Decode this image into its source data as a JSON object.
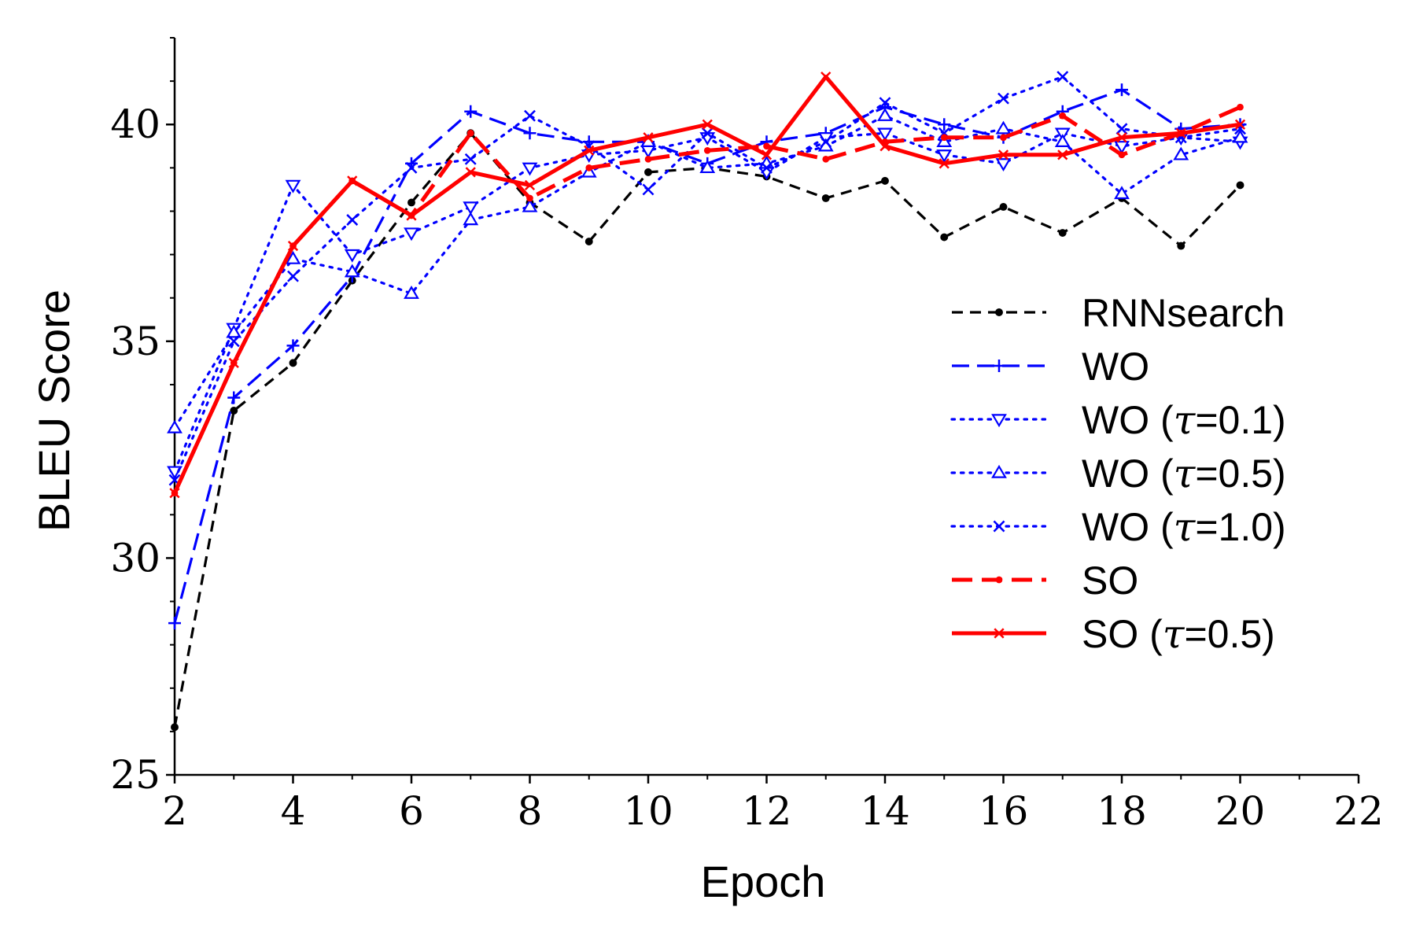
{
  "chart_data": {
    "type": "line",
    "title": "",
    "xlabel": "Epoch",
    "ylabel": "BLEU Score",
    "xlim": [
      2,
      22
    ],
    "ylim": [
      25,
      42
    ],
    "xticks": [
      2,
      4,
      6,
      8,
      10,
      12,
      14,
      16,
      18,
      20,
      22
    ],
    "yticks": [
      25,
      30,
      35,
      40
    ],
    "grid": false,
    "legend_position": "center-right",
    "x": [
      2,
      3,
      4,
      5,
      6,
      7,
      8,
      9,
      10,
      11,
      12,
      13,
      14,
      15,
      16,
      17,
      18,
      19,
      20
    ],
    "series": [
      {
        "name": "RNNsearch",
        "name_suffix": "",
        "color": "#000000",
        "dash": "dashed",
        "marker": "dot",
        "width": "thin",
        "values": [
          26.1,
          33.4,
          34.5,
          36.4,
          38.2,
          39.8,
          38.2,
          37.3,
          38.9,
          39.0,
          38.8,
          38.3,
          38.7,
          37.4,
          38.1,
          37.5,
          38.3,
          37.2,
          38.6
        ]
      },
      {
        "name": "WO",
        "name_suffix": "",
        "color": "#0000ff",
        "dash": "longdash",
        "marker": "plus",
        "width": "thin",
        "values": [
          28.5,
          33.7,
          34.9,
          36.5,
          39.1,
          40.3,
          39.8,
          39.6,
          39.6,
          39.1,
          39.6,
          39.8,
          40.4,
          40.0,
          39.7,
          40.3,
          40.8,
          39.9,
          40.0
        ]
      },
      {
        "name": "WO (",
        "name_suffix": "=0.1)",
        "color": "#0000ff",
        "dash": "dotted",
        "marker": "triangle-down",
        "width": "thin",
        "values": [
          32.0,
          35.3,
          38.6,
          37.0,
          37.5,
          38.1,
          39.0,
          39.3,
          39.4,
          39.7,
          38.9,
          39.7,
          39.8,
          39.3,
          39.1,
          39.8,
          39.5,
          39.7,
          39.6
        ]
      },
      {
        "name": "WO (",
        "name_suffix": "=0.5)",
        "color": "#0000ff",
        "dash": "dotted",
        "marker": "triangle-up",
        "width": "thin",
        "values": [
          33.0,
          35.2,
          36.9,
          36.6,
          36.1,
          37.8,
          38.1,
          38.9,
          39.6,
          39.0,
          39.1,
          39.5,
          40.2,
          39.6,
          39.9,
          39.6,
          38.4,
          39.3,
          39.7
        ]
      },
      {
        "name": "WO (",
        "name_suffix": "=1.0)",
        "color": "#0000ff",
        "dash": "dotted",
        "marker": "x",
        "width": "thin",
        "values": [
          31.8,
          35.0,
          36.5,
          37.8,
          39.0,
          39.2,
          40.2,
          39.5,
          38.5,
          39.8,
          39.0,
          39.6,
          40.5,
          39.8,
          40.6,
          41.1,
          39.9,
          39.7,
          39.9
        ]
      },
      {
        "name": "SO",
        "name_suffix": "",
        "color": "#ff0000",
        "dash": "bigdash",
        "marker": "dot",
        "width": "thick",
        "values": [
          31.5,
          34.5,
          37.2,
          38.7,
          37.9,
          39.8,
          38.3,
          39.0,
          39.2,
          39.4,
          39.5,
          39.2,
          39.6,
          39.7,
          39.7,
          40.2,
          39.3,
          39.8,
          40.4
        ]
      },
      {
        "name": "SO (",
        "name_suffix": "=0.5)",
        "color": "#ff0000",
        "dash": "solid",
        "marker": "x",
        "width": "thick",
        "values": [
          31.5,
          34.5,
          37.2,
          38.7,
          37.9,
          38.9,
          38.6,
          39.4,
          39.7,
          40.0,
          39.3,
          41.1,
          39.5,
          39.1,
          39.3,
          39.3,
          39.7,
          39.8,
          40.0
        ]
      }
    ],
    "tau_symbol": "τ"
  }
}
